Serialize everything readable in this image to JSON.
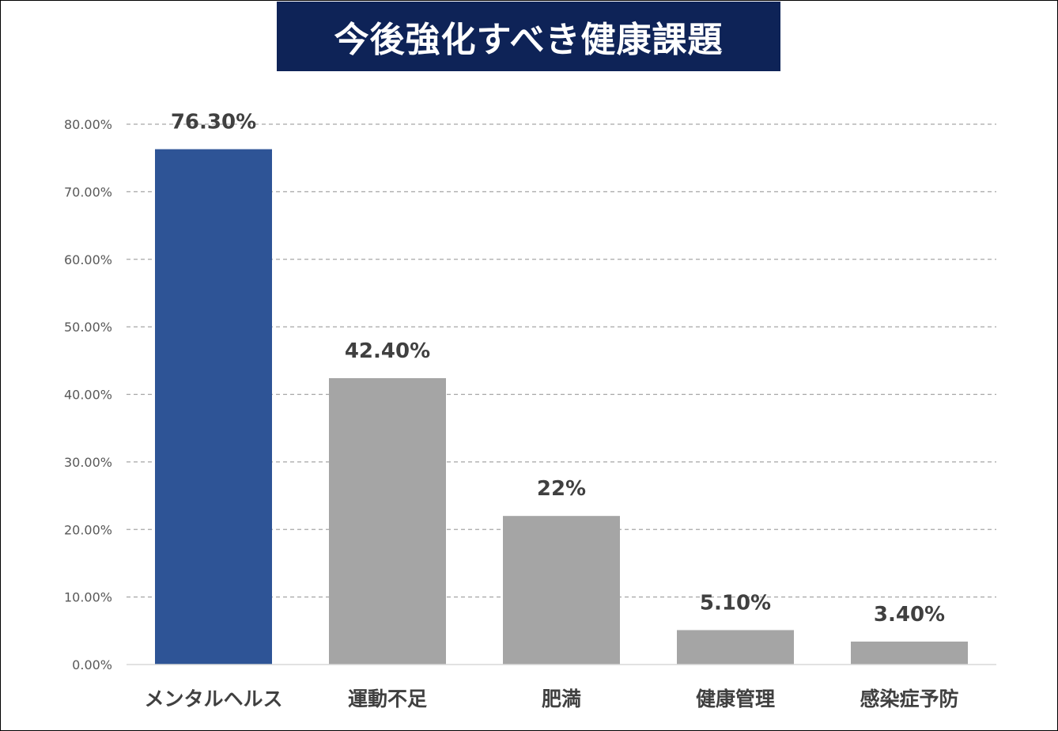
{
  "chart_data": {
    "type": "bar",
    "title": "今後強化すべき健康課題",
    "xlabel": "",
    "ylabel": "",
    "categories": [
      "メンタルヘルス",
      "運動不足",
      "肥満",
      "健康管理",
      "感染症予防"
    ],
    "values": [
      76.3,
      42.4,
      22,
      5.1,
      3.4
    ],
    "data_labels": [
      "76.30%",
      "42.40%",
      "22%",
      "5.10%",
      "3.40%"
    ],
    "ylim": [
      0,
      80
    ],
    "yticks": [
      0,
      10,
      20,
      30,
      40,
      50,
      60,
      70,
      80
    ],
    "ytick_labels": [
      "0.00%",
      "10.00%",
      "20.00%",
      "30.00%",
      "40.00%",
      "50.00%",
      "60.00%",
      "70.00%",
      "80.00%"
    ],
    "grid": "dashed-horizontal",
    "legend": "none",
    "colors": {
      "highlight": "#2e5496",
      "default": "#a5a5a5",
      "title_background": "#0e2357",
      "title_text": "#ffffff"
    },
    "highlight_index": 0
  }
}
